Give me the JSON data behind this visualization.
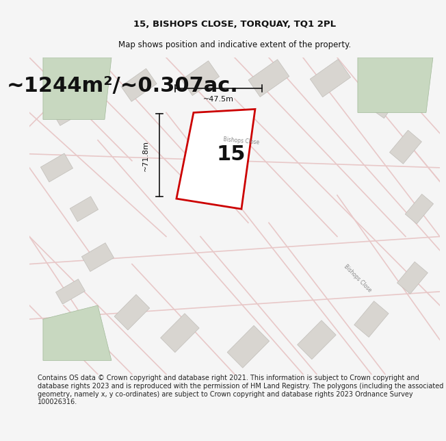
{
  "title_line1": "15, BISHOPS CLOSE, TORQUAY, TQ1 2PL",
  "title_line2": "Map shows position and indicative extent of the property.",
  "area_text": "~1244m²/~0.307ac.",
  "property_number": "15",
  "dim_width": "~47.5m",
  "dim_height": "~71.8m",
  "footer_text": "Contains OS data © Crown copyright and database right 2021. This information is subject to Crown copyright and database rights 2023 and is reproduced with the permission of HM Land Registry. The polygons (including the associated geometry, namely x, y co-ordinates) are subject to Crown copyright and database rights 2023 Ordnance Survey 100026316.",
  "bg_color": "#f5f5f5",
  "map_bg": "#f0eeec",
  "plot_fill": "#ffffff",
  "plot_outline": "#cc0000",
  "road_color": "#e8c8c8",
  "building_color": "#d8d5d0",
  "building_outline": "#c0bdb8",
  "green_area": "#c8d8c0",
  "road_label_color": "#888888",
  "title_fontsize": 9.5,
  "subtitle_fontsize": 8.5,
  "area_fontsize": 22,
  "footer_fontsize": 7
}
